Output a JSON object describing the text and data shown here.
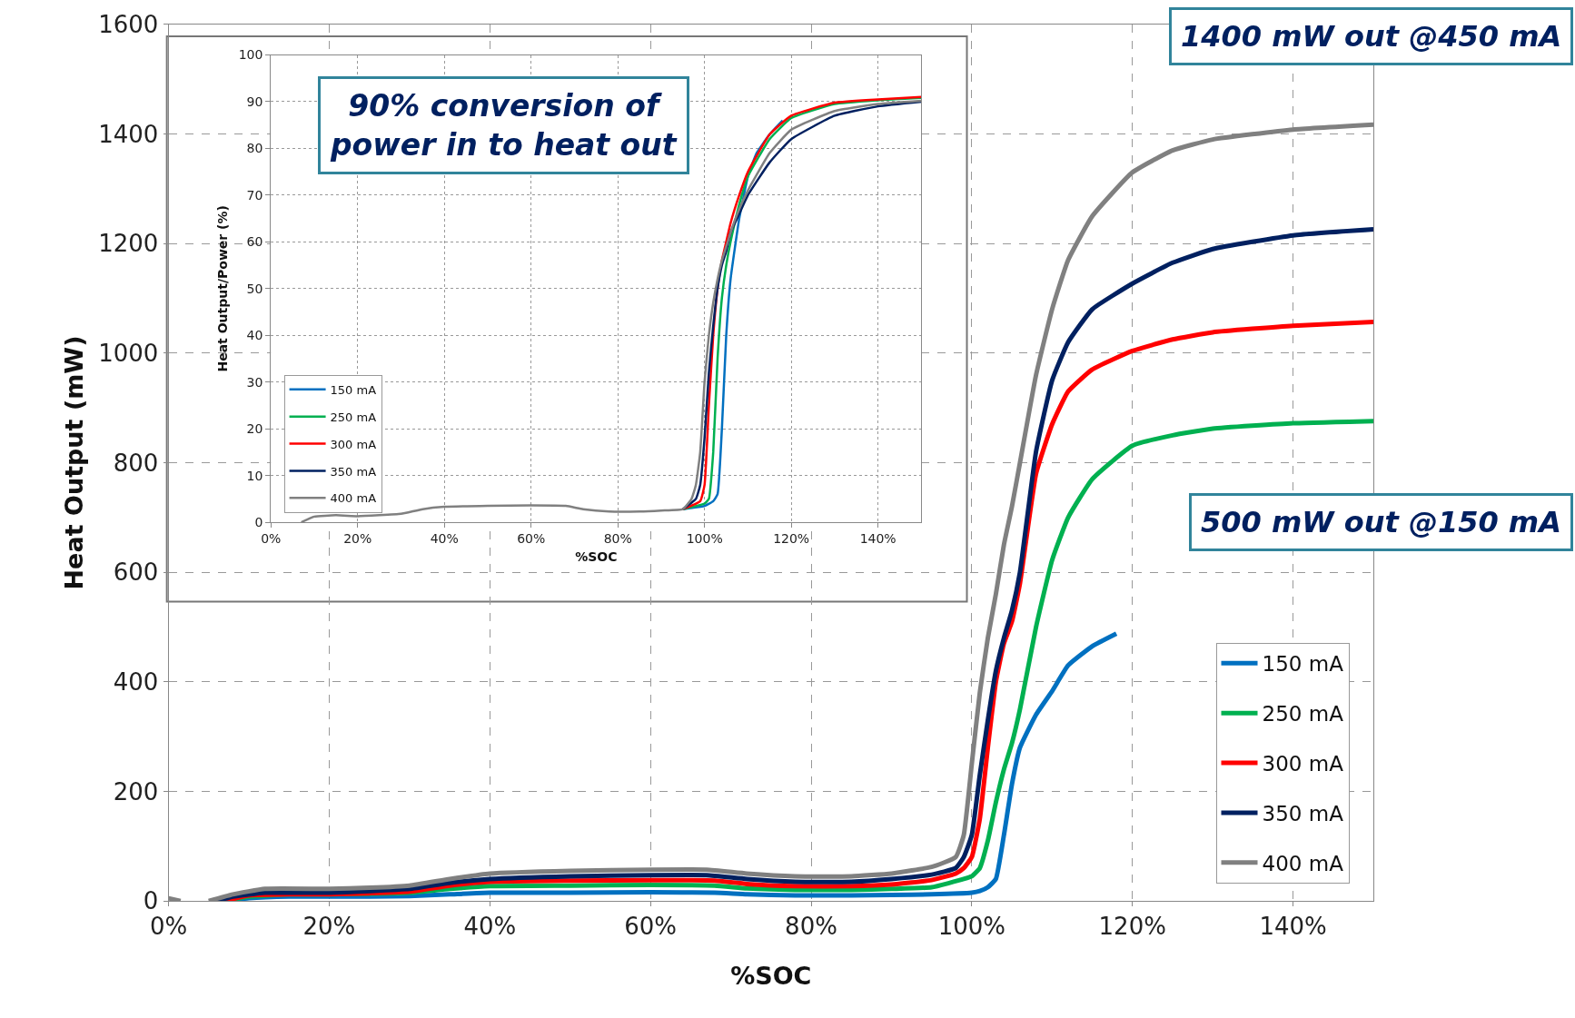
{
  "chart_data": [
    {
      "type": "line",
      "xlabel": "%SOC",
      "ylabel": "Heat Output (mW)",
      "xlim": [
        0,
        150
      ],
      "xticks": [
        {
          "value": 0,
          "label": "0%"
        },
        {
          "value": 20,
          "label": "20%"
        },
        {
          "value": 40,
          "label": "40%"
        },
        {
          "value": 60,
          "label": "60%"
        },
        {
          "value": 80,
          "label": "80%"
        },
        {
          "value": 100,
          "label": "100%"
        },
        {
          "value": 120,
          "label": "120%"
        },
        {
          "value": 140,
          "label": "140%"
        }
      ],
      "ylim": [
        0,
        1600
      ],
      "yticks": [
        0,
        200,
        400,
        600,
        800,
        1000,
        1200,
        1400,
        1600
      ],
      "grid": true,
      "legend": "bottom right",
      "marker": "none",
      "line_style": "solid",
      "annotations": [
        "1400 mW out @450 mA",
        "500 mW out @150 mA"
      ],
      "series": [
        {
          "name": "150 mA",
          "color": "#0070c0",
          "x": [
            7,
            10,
            15,
            20,
            25,
            30,
            35,
            40,
            50,
            60,
            68,
            72,
            78,
            85,
            90,
            95,
            100,
            101,
            102,
            103,
            104,
            105,
            106,
            108,
            110,
            112,
            115,
            118
          ],
          "values": [
            0,
            5,
            8,
            8,
            8,
            9,
            12,
            15,
            15,
            16,
            15,
            12,
            10,
            10,
            11,
            12,
            15,
            18,
            25,
            40,
            120,
            213,
            280,
            340,
            383,
            430,
            465,
            488
          ]
        },
        {
          "name": "250 mA",
          "color": "#00b050",
          "x": [
            7,
            10,
            15,
            20,
            25,
            30,
            35,
            40,
            50,
            60,
            68,
            72,
            78,
            85,
            90,
            95,
            99,
            100,
            101,
            102,
            103,
            104,
            105,
            106,
            108,
            110,
            112,
            115,
            120,
            125,
            130,
            140,
            150
          ],
          "values": [
            0,
            8,
            12,
            12,
            13,
            15,
            22,
            27,
            28,
            29,
            28,
            23,
            20,
            20,
            22,
            25,
            40,
            45,
            60,
            110,
            180,
            240,
            288,
            350,
            500,
            622,
            700,
            770,
            831,
            850,
            862,
            872,
            876
          ]
        },
        {
          "name": "300 mA",
          "color": "#ff0000",
          "x": [
            7,
            10,
            15,
            20,
            25,
            30,
            35,
            40,
            50,
            60,
            68,
            72,
            78,
            85,
            90,
            95,
            98,
            99,
            100,
            101,
            102,
            103,
            104,
            105,
            106,
            108,
            110,
            112,
            115,
            120,
            125,
            130,
            140,
            150
          ],
          "values": [
            0,
            10,
            12,
            12,
            14,
            17,
            28,
            35,
            37,
            38,
            37,
            31,
            27,
            27,
            30,
            38,
            50,
            60,
            80,
            150,
            280,
            400,
            470,
            510,
            580,
            780,
            870,
            930,
            970,
            1004,
            1025,
            1038,
            1050,
            1057
          ]
        },
        {
          "name": "350 mA",
          "color": "#002060",
          "x": [
            6,
            8,
            12,
            20,
            25,
            30,
            35,
            40,
            50,
            60,
            67,
            72,
            78,
            85,
            90,
            95,
            98,
            99,
            100,
            101,
            102,
            103,
            104,
            105,
            106,
            108,
            110,
            112,
            115,
            120,
            125,
            130,
            140,
            150
          ],
          "values": [
            0,
            8,
            15,
            15,
            18,
            22,
            33,
            40,
            45,
            47,
            47,
            40,
            35,
            35,
            40,
            48,
            60,
            80,
            120,
            230,
            330,
            420,
            480,
            530,
            600,
            820,
            950,
            1020,
            1080,
            1127,
            1165,
            1190,
            1215,
            1226
          ]
        },
        {
          "name": "400 mA",
          "color": "#808080",
          "x": [
            0,
            1.5,
            3,
            5,
            8,
            12,
            20,
            25,
            30,
            35,
            40,
            50,
            60,
            67,
            72,
            78,
            85,
            90,
            95,
            98,
            99,
            100,
            101,
            102,
            103,
            104,
            105,
            106,
            108,
            110,
            112,
            115,
            120,
            125,
            130,
            140,
            150
          ],
          "values": [
            5,
            0,
            null,
            0,
            12,
            22,
            22,
            24,
            28,
            40,
            50,
            55,
            57,
            57,
            50,
            45,
            45,
            50,
            62,
            80,
            120,
            250,
            380,
            480,
            560,
            650,
            720,
            800,
            960,
            1080,
            1170,
            1250,
            1330,
            1370,
            1390,
            1408,
            1417
          ]
        }
      ]
    },
    {
      "type": "line",
      "xlabel": "%SOC",
      "ylabel": "Heat Output/Power (%)",
      "xlim": [
        0,
        150
      ],
      "xticks": [
        {
          "value": 0,
          "label": "0%"
        },
        {
          "value": 20,
          "label": "20%"
        },
        {
          "value": 40,
          "label": "40%"
        },
        {
          "value": 60,
          "label": "60%"
        },
        {
          "value": 80,
          "label": "80%"
        },
        {
          "value": 100,
          "label": "100%"
        },
        {
          "value": 120,
          "label": "120%"
        },
        {
          "value": 140,
          "label": "140%"
        }
      ],
      "ylim": [
        0,
        100
      ],
      "yticks": [
        0,
        10,
        20,
        30,
        40,
        50,
        60,
        70,
        80,
        90,
        100
      ],
      "grid": true,
      "legend": "bottom left",
      "marker": "none",
      "line_style": "solid",
      "annotations": [
        "90% conversion of\npower in to heat out"
      ],
      "series": [
        {
          "name": "150 mA",
          "color": "#0070c0",
          "x": [
            95,
            100,
            102,
            103,
            104,
            105,
            106,
            108,
            110,
            112,
            115,
            118
          ],
          "values": [
            2.8,
            3.5,
            4.5,
            6,
            20,
            40,
            52,
            65,
            74,
            79,
            83,
            86
          ]
        },
        {
          "name": "250 mA",
          "color": "#00b050",
          "x": [
            95,
            100,
            101,
            102,
            103,
            104,
            105,
            106,
            108,
            110,
            115,
            120,
            130,
            140,
            150
          ],
          "values": [
            2.8,
            4,
            5,
            15,
            35,
            48,
            55,
            60,
            68,
            74,
            82,
            86.5,
            89.5,
            90.3,
            90.8
          ]
        },
        {
          "name": "300 mA",
          "color": "#ff0000",
          "x": [
            95,
            99,
            100,
            101,
            102,
            103,
            104,
            105,
            106,
            108,
            110,
            115,
            120,
            130,
            140,
            150
          ],
          "values": [
            2.8,
            4.5,
            8,
            25,
            40,
            50,
            56,
            60,
            64,
            70,
            75,
            83,
            87,
            89.8,
            90.5,
            91
          ]
        },
        {
          "name": "350 mA",
          "color": "#002060",
          "x": [
            95,
            98,
            99,
            100,
            101,
            102,
            103,
            104,
            105,
            106,
            108,
            110,
            115,
            120,
            130,
            140,
            150
          ],
          "values": [
            2.8,
            5,
            8,
            18,
            32,
            42,
            50,
            55,
            58,
            62,
            66,
            70,
            77,
            82,
            87,
            89,
            90
          ]
        },
        {
          "name": "400 mA",
          "color": "#808080",
          "x": [
            7,
            10,
            15,
            20,
            25,
            30,
            35,
            40,
            50,
            60,
            68,
            72,
            78,
            85,
            90,
            95,
            97,
            98,
            99,
            100,
            101,
            102,
            103,
            104,
            105,
            106,
            108,
            110,
            115,
            120,
            130,
            140,
            150
          ],
          "values": [
            0,
            1.2,
            1.5,
            1.3,
            1.5,
            1.8,
            2.8,
            3.3,
            3.5,
            3.6,
            3.5,
            2.8,
            2.3,
            2.3,
            2.5,
            2.8,
            5,
            8,
            15,
            30,
            40,
            47,
            52,
            56,
            59,
            62,
            67,
            71,
            79,
            84,
            88,
            89.5,
            90.2
          ]
        }
      ]
    }
  ]
}
